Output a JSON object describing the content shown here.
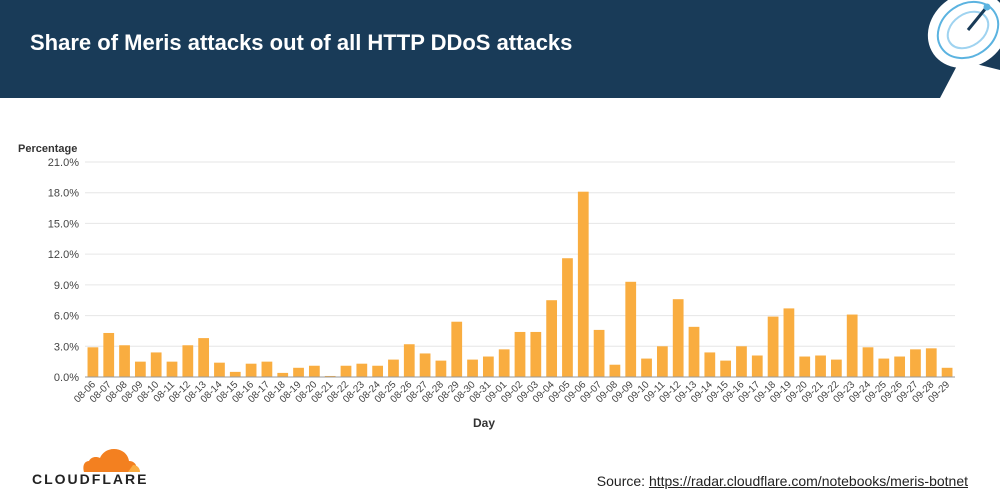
{
  "header": {
    "title": "Share of Meris attacks out of all HTTP DDoS attacks"
  },
  "footer": {
    "brand": "CLOUDFLARE",
    "source_label": "Source:",
    "source_link": "https://radar.cloudflare.com/notebooks/meris-botnet"
  },
  "colors": {
    "header_bg": "#193B58",
    "bar": "#F9AD40",
    "brand_orange": "#F38020"
  },
  "chart_data": {
    "type": "bar",
    "title": "",
    "xlabel": "Day",
    "ylabel": "Percentage",
    "ylim": [
      0,
      21
    ],
    "yticks": [
      "0.0%",
      "3.0%",
      "6.0%",
      "9.0%",
      "12.0%",
      "15.0%",
      "18.0%",
      "21.0%"
    ],
    "grid": true,
    "categories": [
      "08-06",
      "08-07",
      "08-08",
      "08-09",
      "08-10",
      "08-11",
      "08-12",
      "08-13",
      "08-14",
      "08-15",
      "08-16",
      "08-17",
      "08-18",
      "08-19",
      "08-20",
      "08-21",
      "08-22",
      "08-23",
      "08-24",
      "08-25",
      "08-26",
      "08-27",
      "08-28",
      "08-29",
      "08-30",
      "08-31",
      "09-01",
      "09-02",
      "09-03",
      "09-04",
      "09-05",
      "09-06",
      "09-07",
      "09-08",
      "09-09",
      "09-10",
      "09-11",
      "09-12",
      "09-13",
      "09-14",
      "09-15",
      "09-16",
      "09-17",
      "09-18",
      "09-19",
      "09-20",
      "09-21",
      "09-22",
      "09-23",
      "09-24",
      "09-25",
      "09-26",
      "09-27",
      "09-28",
      "09-29"
    ],
    "values": [
      2.9,
      4.3,
      3.1,
      1.5,
      2.4,
      1.5,
      3.1,
      3.8,
      1.4,
      0.5,
      1.3,
      1.5,
      0.4,
      0.9,
      1.1,
      0.1,
      1.1,
      1.3,
      1.1,
      1.7,
      3.2,
      2.3,
      1.6,
      5.4,
      1.7,
      2.0,
      2.7,
      4.4,
      4.4,
      7.5,
      11.6,
      18.1,
      4.6,
      1.2,
      9.3,
      1.8,
      3.0,
      7.6,
      4.9,
      2.4,
      1.6,
      3.0,
      2.1,
      5.9,
      6.7,
      2.0,
      2.1,
      1.7,
      6.1,
      2.9,
      1.8,
      2.0,
      2.7,
      2.8,
      0.9
    ]
  }
}
